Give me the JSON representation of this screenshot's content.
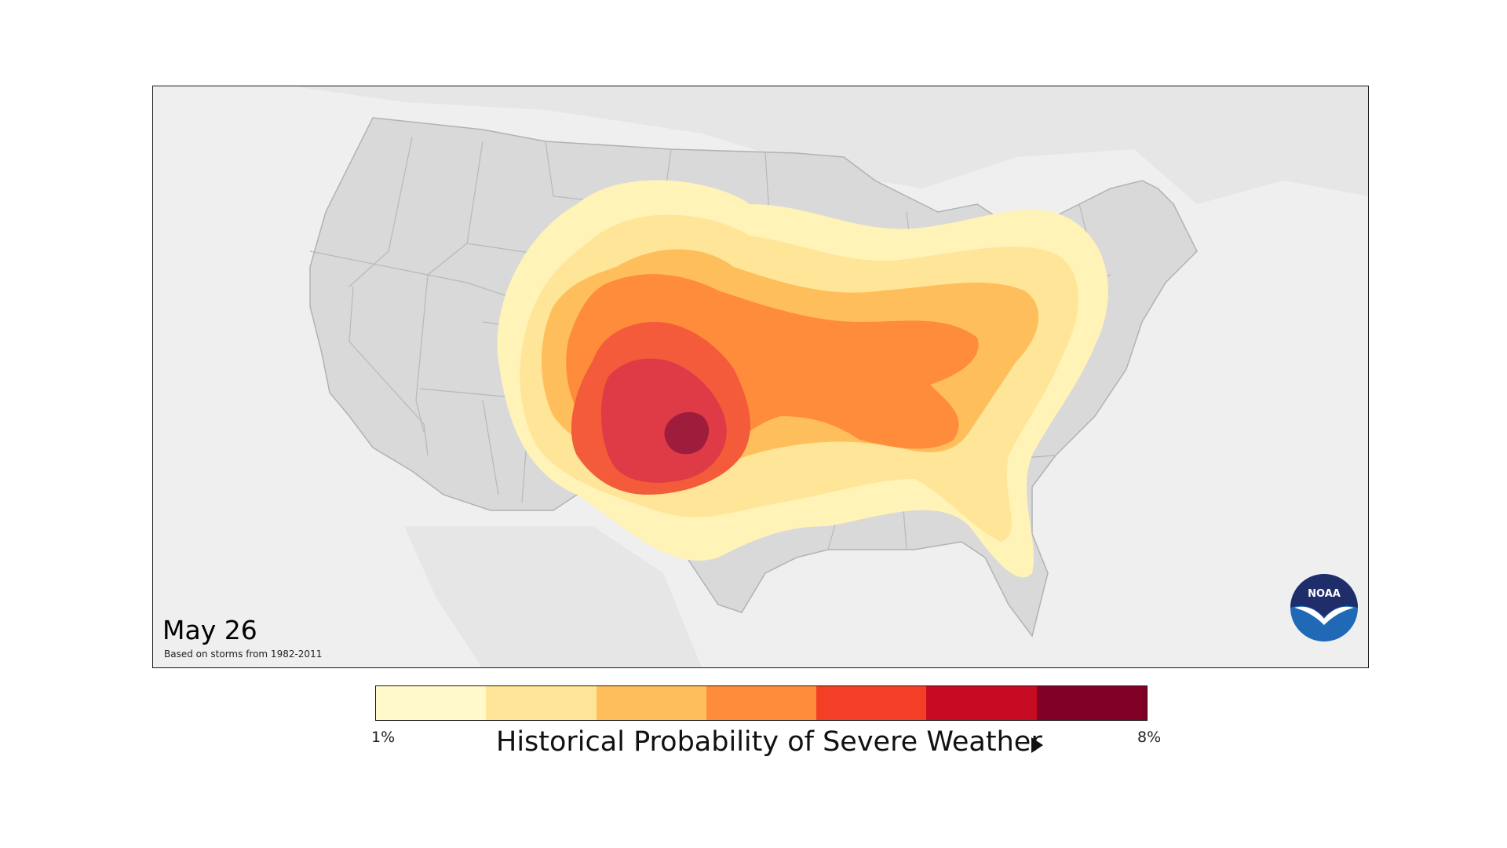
{
  "map": {
    "date": "May 26",
    "basis_note": "Based on storms from 1982-2011",
    "logo_text": "NOAA"
  },
  "legend": {
    "title": "Historical Probability of Severe Weather",
    "min_label": "1%",
    "max_label": "8%",
    "arrow_icon": "triangle-right-icon",
    "colors": [
      "#fff9cc",
      "#ffe597",
      "#ffbe5c",
      "#fe8c3a",
      "#f33f25",
      "#c70b22",
      "#810025"
    ]
  },
  "colors": {
    "land": "#d9d9d9",
    "background": "#efefef",
    "borders": "#b2b2b2",
    "noaa_blue": "#1f69b6",
    "noaa_navy": "#1f2d6b"
  }
}
